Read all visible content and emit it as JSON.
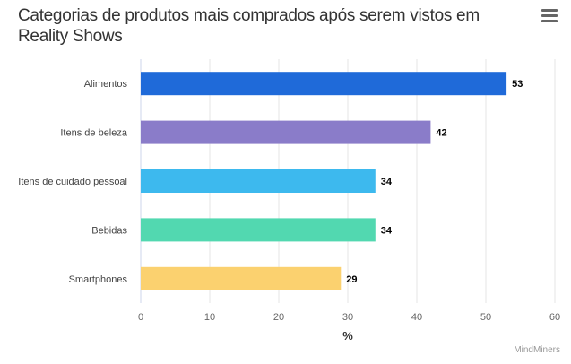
{
  "header": {
    "title": "Categorias de produtos mais comprados após serem vistos em Reality Shows",
    "menu_icon": "hamburger-menu-icon"
  },
  "credit": "MindMiners",
  "chart_data": {
    "type": "bar",
    "orientation": "horizontal",
    "title": "Categorias de produtos mais comprados após serem vistos em Reality Shows",
    "categories": [
      "Alimentos",
      "Itens de beleza",
      "Itens de cuidado pessoal",
      "Bebidas",
      "Smartphones"
    ],
    "values": [
      53,
      42,
      34,
      34,
      29
    ],
    "colors": [
      "#1f6ad9",
      "#8a7cc9",
      "#3db9ee",
      "#52d8b0",
      "#fbd16f"
    ],
    "xlabel": "%",
    "ylabel": "",
    "xlim": [
      0,
      60
    ],
    "xticks": [
      0,
      10,
      20,
      30,
      40,
      50,
      60
    ],
    "grid": true,
    "legend": "none"
  }
}
